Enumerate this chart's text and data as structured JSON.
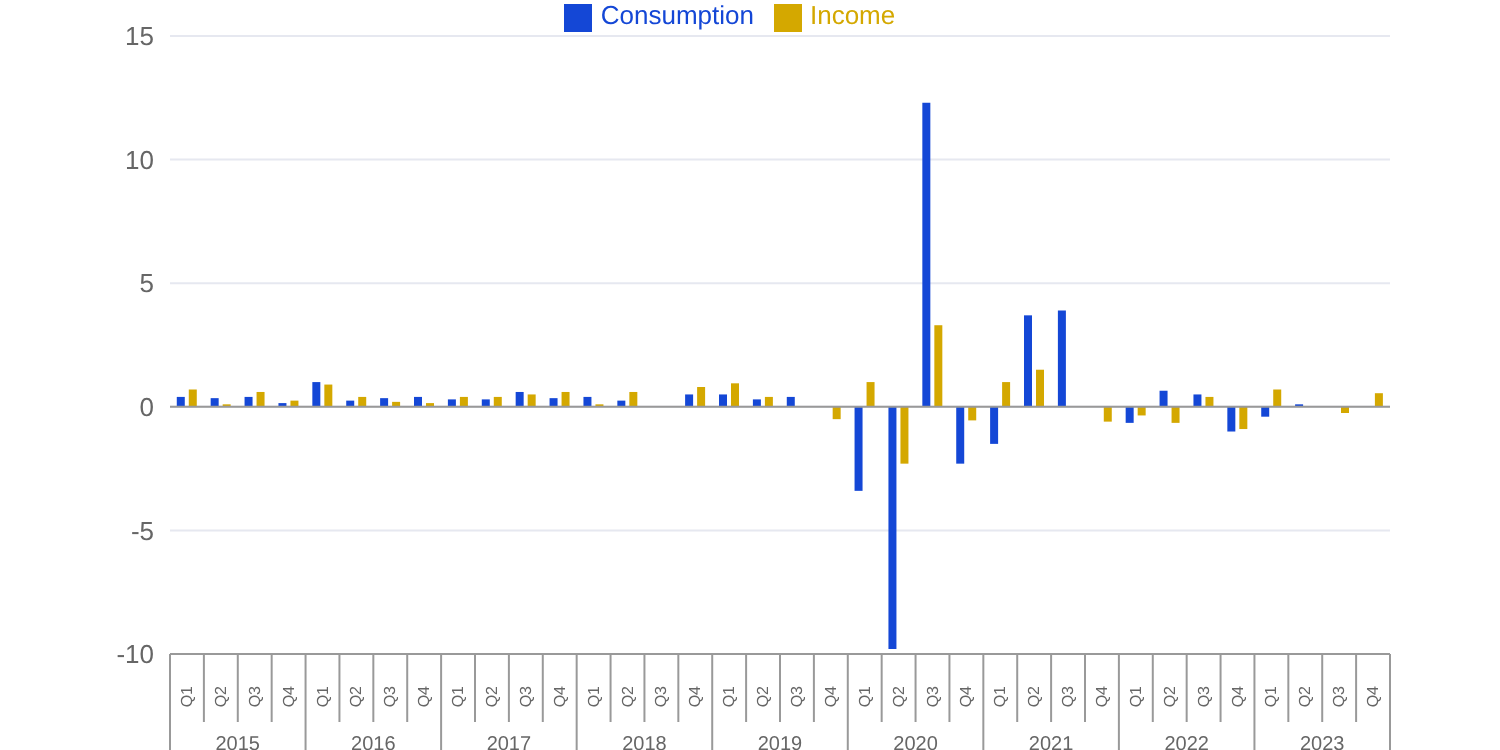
{
  "chart_data": {
    "type": "bar",
    "categories": [
      "Q1",
      "Q2",
      "Q3",
      "Q4",
      "Q1",
      "Q2",
      "Q3",
      "Q4",
      "Q1",
      "Q2",
      "Q3",
      "Q4",
      "Q1",
      "Q2",
      "Q3",
      "Q4",
      "Q1",
      "Q2",
      "Q3",
      "Q4",
      "Q1",
      "Q2",
      "Q3",
      "Q4",
      "Q1",
      "Q2",
      "Q3",
      "Q4",
      "Q1",
      "Q2",
      "Q3",
      "Q4",
      "Q1",
      "Q2",
      "Q3",
      "Q4"
    ],
    "series": [
      {
        "name": "Consumption",
        "color": "#1447d6",
        "values": [
          0.4,
          0.35,
          0.4,
          0.15,
          1.0,
          0.25,
          0.35,
          0.4,
          0.3,
          0.3,
          0.6,
          0.35,
          0.4,
          0.25,
          0,
          0.5,
          0.5,
          0.3,
          0.4,
          0,
          -3.4,
          -9.8,
          12.3,
          -2.3,
          -1.5,
          3.7,
          3.9,
          0,
          -0.65,
          0.65,
          0.5,
          -1.0,
          -0.4,
          0.1,
          0,
          0
        ]
      },
      {
        "name": "Income",
        "color": "#d4a800",
        "values": [
          0.7,
          0.1,
          0.6,
          0.25,
          0.9,
          0.4,
          0.2,
          0.15,
          0.4,
          0.4,
          0.5,
          0.6,
          0.1,
          0.6,
          0,
          0.8,
          0.95,
          0.4,
          0,
          -0.5,
          1.0,
          -2.3,
          3.3,
          -0.55,
          1.0,
          1.5,
          0,
          -0.6,
          -0.35,
          -0.65,
          0.4,
          -0.9,
          0.7,
          0,
          -0.25,
          0.55
        ]
      }
    ],
    "annotations": [
      "2015",
      "2016",
      "2017",
      "2018",
      "2019",
      "2020",
      "2021",
      "2022",
      "2023"
    ],
    "ylim": [
      -10,
      15
    ],
    "yticks": [
      -10,
      -5,
      0,
      5,
      10,
      15
    ],
    "grid": "y",
    "legend": "top"
  }
}
